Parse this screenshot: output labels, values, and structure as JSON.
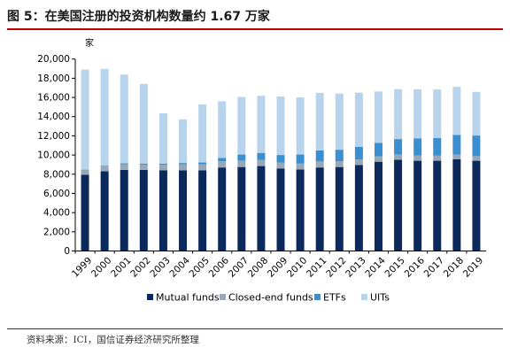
{
  "title": "图 5：在美国注册的投资机构数量约 1.67 万家",
  "source": "资料来源：ICI，国信证券经济研究所整理",
  "colors": {
    "mutual_funds": "#0b2a5b",
    "closed_end_funds": "#97a7b8",
    "etfs": "#3a8fd0",
    "uits": "#b8d3ec",
    "title_rule": "#c00000"
  },
  "chart_data": {
    "type": "bar",
    "stacked": true,
    "unit_label": "家",
    "ylim": [
      0,
      20000
    ],
    "yticks": [
      0,
      2000,
      4000,
      6000,
      8000,
      10000,
      12000,
      14000,
      16000,
      18000,
      20000
    ],
    "ytick_labels": [
      "0",
      "2,000",
      "4,000",
      "6,000",
      "8,000",
      "10,000",
      "12,000",
      "14,000",
      "16,000",
      "18,000",
      "20,000"
    ],
    "grid": false,
    "legend_position": "bottom",
    "categories": [
      "1999",
      "2000",
      "2001",
      "2002",
      "2003",
      "2004",
      "2005",
      "2006",
      "2007",
      "2008",
      "2009",
      "2010",
      "2011",
      "2012",
      "2013",
      "2014",
      "2015",
      "2016",
      "2017",
      "2018",
      "2019"
    ],
    "series": [
      {
        "name": "Mutual funds",
        "color_key": "mutual_funds",
        "values": [
          7950,
          8300,
          8450,
          8450,
          8400,
          8400,
          8400,
          8700,
          8750,
          8850,
          8600,
          8500,
          8700,
          8750,
          8950,
          9300,
          9500,
          9400,
          9400,
          9550,
          9400
        ]
      },
      {
        "name": "Closed-end funds",
        "color_key": "closed_end_funds",
        "values": [
          520,
          500,
          580,
          550,
          580,
          620,
          620,
          640,
          670,
          640,
          600,
          600,
          630,
          600,
          600,
          570,
          560,
          540,
          530,
          500,
          480
        ]
      },
      {
        "name": "ETFs",
        "color_key": "etfs",
        "values": [
          30,
          80,
          100,
          110,
          120,
          150,
          200,
          360,
          630,
          730,
          800,
          950,
          1150,
          1200,
          1300,
          1400,
          1600,
          1800,
          1850,
          2050,
          2150
        ]
      },
      {
        "name": "UITs",
        "color_key": "uits",
        "values": [
          10400,
          10100,
          9250,
          8300,
          5250,
          4550,
          6050,
          5900,
          6000,
          5950,
          6100,
          5950,
          6000,
          5850,
          5650,
          5350,
          5200,
          5100,
          5050,
          5000,
          4550
        ]
      }
    ]
  }
}
